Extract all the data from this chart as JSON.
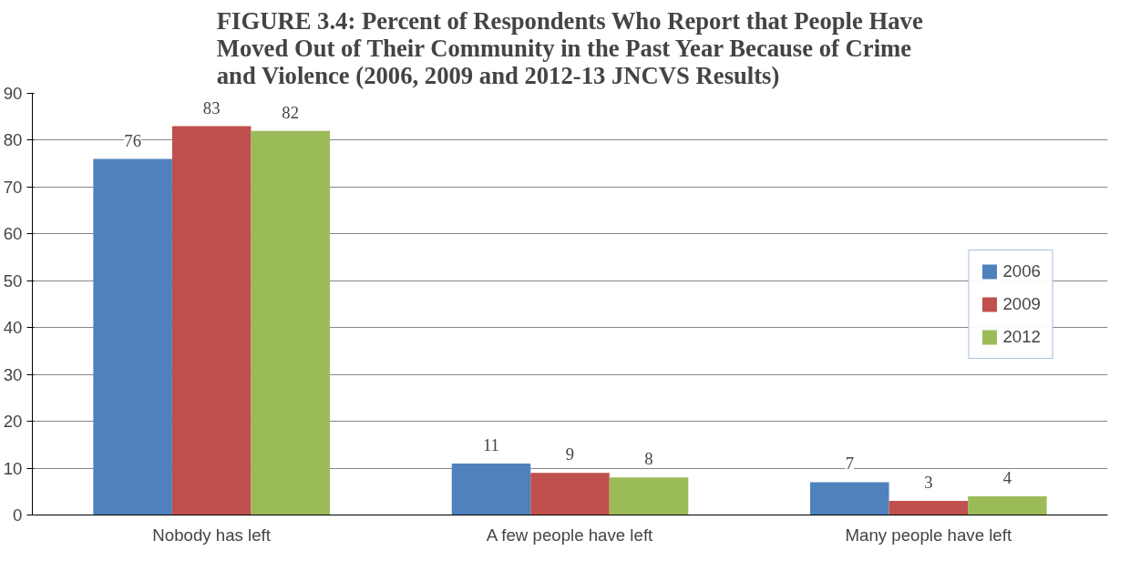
{
  "chart_data": {
    "type": "bar",
    "title": "FIGURE 3.4: Percent of Respondents Who Report that People Have Moved Out of Their Community in the Past Year Because of Crime and Violence (2006, 2009 and 2012-13 JNCVS Results)",
    "categories": [
      "Nobody has left",
      "A few people have left",
      "Many people have left"
    ],
    "series": [
      {
        "name": "2006",
        "color": "#4f81bd",
        "values": [
          76,
          11,
          7
        ]
      },
      {
        "name": "2009",
        "color": "#c0504d",
        "values": [
          83,
          9,
          3
        ]
      },
      {
        "name": "2012",
        "color": "#9bbb59",
        "values": [
          82,
          8,
          4
        ]
      }
    ],
    "ylim": [
      0,
      90
    ],
    "yticks": [
      0,
      10,
      20,
      30,
      40,
      50,
      60,
      70,
      80,
      90
    ],
    "grid": "y",
    "legend": "right",
    "data_labels": true
  }
}
